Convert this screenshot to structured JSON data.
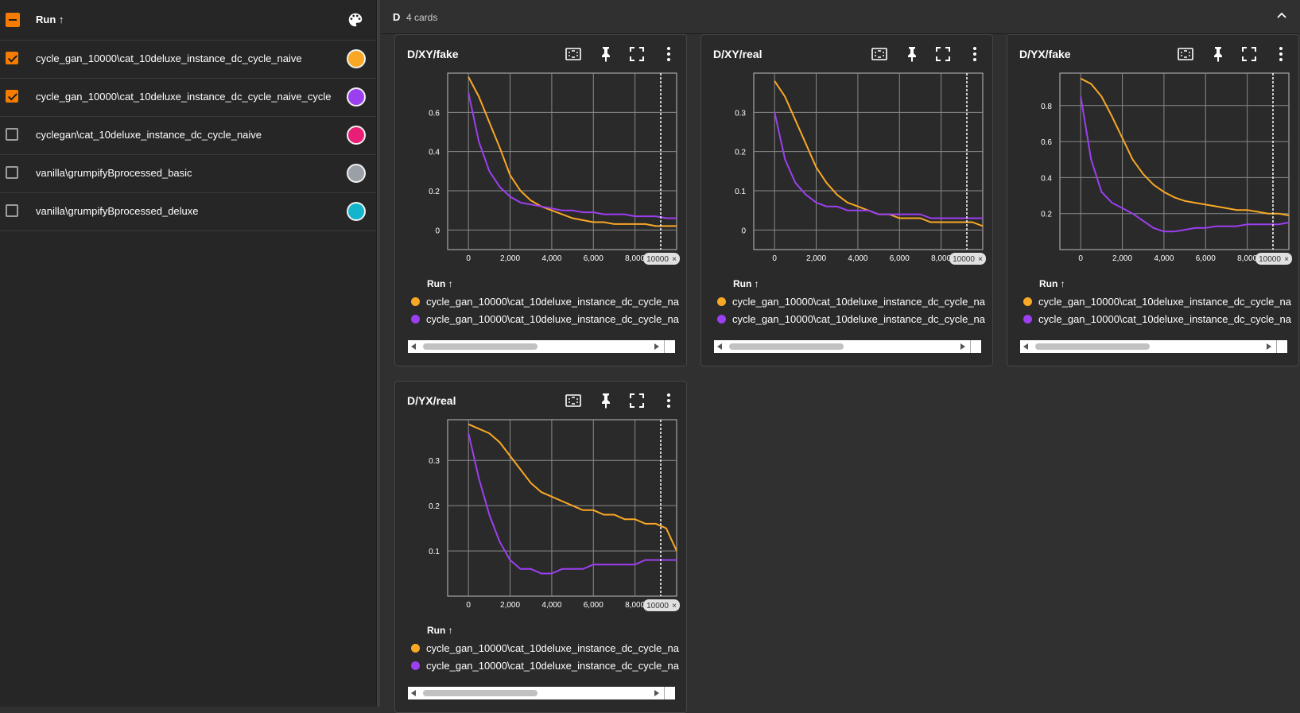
{
  "runs_panel": {
    "header_label": "Run ↑",
    "runs": [
      {
        "name": "cycle_gan_10000\\cat_10deluxe_instance_dc_cycle_naive",
        "checked": true,
        "color": "#f9a825"
      },
      {
        "name": "cycle_gan_10000\\cat_10deluxe_instance_dc_cycle_naive_cycle",
        "checked": true,
        "color": "#9c3ff0"
      },
      {
        "name": "cyclegan\\cat_10deluxe_instance_dc_cycle_naive",
        "checked": false,
        "color": "#e91e77"
      },
      {
        "name": "vanilla\\grumpifyBprocessed_basic",
        "checked": false,
        "color": "#9aa0a6"
      },
      {
        "name": "vanilla\\grumpifyBprocessed_deluxe",
        "checked": false,
        "color": "#12b5cb"
      }
    ]
  },
  "group": {
    "name": "D",
    "count": "4 cards"
  },
  "icons": [
    "palette-icon",
    "fit-domain-icon",
    "pin-icon",
    "fullscreen-icon",
    "more-vert-icon",
    "chevron-up-icon"
  ],
  "colors": {
    "series_1": "#f9a825",
    "series_2": "#9c3ff0",
    "accent": "#f57c00"
  },
  "legend_head": "Run ↑",
  "legend_items": [
    {
      "name": "cycle_gan_10000\\cat_10deluxe_instance_dc_cycle_na",
      "color": "#f9a825"
    },
    {
      "name": "cycle_gan_10000\\cat_10deluxe_instance_dc_cycle_na",
      "color": "#9c3ff0"
    }
  ],
  "step_marker": "10000",
  "cards": [
    {
      "title": "D/XY/fake"
    },
    {
      "title": "D/XY/real"
    },
    {
      "title": "D/YX/fake"
    },
    {
      "title": "D/YX/real"
    }
  ],
  "chart_data": [
    {
      "type": "line",
      "title": "D/XY/fake",
      "x_ticks": [
        "0",
        "2,000",
        "4,000",
        "6,000",
        "8,000"
      ],
      "y_ticks": [
        "0",
        "0.2",
        "0.4",
        "0.6"
      ],
      "xlim": [
        -1000,
        10000
      ],
      "ylim": [
        -0.1,
        0.8
      ],
      "grid": true,
      "series": [
        {
          "color": "#f9a825",
          "x": [
            0,
            500,
            1000,
            1500,
            2000,
            2500,
            3000,
            3500,
            4000,
            4500,
            5000,
            5500,
            6000,
            6500,
            7000,
            7500,
            8000,
            8500,
            9000,
            9500,
            10000
          ],
          "y": [
            0.78,
            0.68,
            0.55,
            0.42,
            0.28,
            0.2,
            0.15,
            0.12,
            0.1,
            0.08,
            0.06,
            0.05,
            0.04,
            0.04,
            0.03,
            0.03,
            0.03,
            0.03,
            0.02,
            0.02,
            0.02
          ]
        },
        {
          "color": "#9c3ff0",
          "x": [
            0,
            500,
            1000,
            1500,
            2000,
            2500,
            3000,
            3500,
            4000,
            4500,
            5000,
            5500,
            6000,
            6500,
            7000,
            7500,
            8000,
            8500,
            9000,
            9500,
            10000
          ],
          "y": [
            0.7,
            0.45,
            0.3,
            0.22,
            0.17,
            0.14,
            0.13,
            0.12,
            0.11,
            0.1,
            0.1,
            0.09,
            0.09,
            0.08,
            0.08,
            0.08,
            0.07,
            0.07,
            0.07,
            0.06,
            0.06
          ]
        }
      ]
    },
    {
      "type": "line",
      "title": "D/XY/real",
      "x_ticks": [
        "0",
        "2,000",
        "4,000",
        "6,000",
        "8,000"
      ],
      "y_ticks": [
        "0",
        "0.1",
        "0.2",
        "0.3"
      ],
      "xlim": [
        -1000,
        10000
      ],
      "ylim": [
        -0.05,
        0.4
      ],
      "grid": true,
      "series": [
        {
          "color": "#f9a825",
          "x": [
            0,
            500,
            1000,
            1500,
            2000,
            2500,
            3000,
            3500,
            4000,
            4500,
            5000,
            5500,
            6000,
            6500,
            7000,
            7500,
            8000,
            8500,
            9000,
            9500,
            10000
          ],
          "y": [
            0.38,
            0.34,
            0.28,
            0.22,
            0.16,
            0.12,
            0.09,
            0.07,
            0.06,
            0.05,
            0.04,
            0.04,
            0.03,
            0.03,
            0.03,
            0.02,
            0.02,
            0.02,
            0.02,
            0.02,
            0.01
          ]
        },
        {
          "color": "#9c3ff0",
          "x": [
            0,
            500,
            1000,
            1500,
            2000,
            2500,
            3000,
            3500,
            4000,
            4500,
            5000,
            5500,
            6000,
            6500,
            7000,
            7500,
            8000,
            8500,
            9000,
            9500,
            10000
          ],
          "y": [
            0.3,
            0.18,
            0.12,
            0.09,
            0.07,
            0.06,
            0.06,
            0.05,
            0.05,
            0.05,
            0.04,
            0.04,
            0.04,
            0.04,
            0.04,
            0.03,
            0.03,
            0.03,
            0.03,
            0.03,
            0.03
          ]
        }
      ]
    },
    {
      "type": "line",
      "title": "D/YX/fake",
      "x_ticks": [
        "0",
        "2,000",
        "4,000",
        "6,000",
        "8,000"
      ],
      "y_ticks": [
        "0.2",
        "0.4",
        "0.6",
        "0.8"
      ],
      "xlim": [
        -1000,
        10000
      ],
      "ylim": [
        0,
        0.98
      ],
      "grid": true,
      "series": [
        {
          "color": "#f9a825",
          "x": [
            0,
            500,
            1000,
            1500,
            2000,
            2500,
            3000,
            3500,
            4000,
            4500,
            5000,
            5500,
            6000,
            6500,
            7000,
            7500,
            8000,
            8500,
            9000,
            9500,
            10000
          ],
          "y": [
            0.95,
            0.92,
            0.85,
            0.74,
            0.62,
            0.5,
            0.42,
            0.36,
            0.32,
            0.29,
            0.27,
            0.26,
            0.25,
            0.24,
            0.23,
            0.22,
            0.22,
            0.21,
            0.2,
            0.2,
            0.19
          ]
        },
        {
          "color": "#9c3ff0",
          "x": [
            0,
            500,
            1000,
            1500,
            2000,
            2500,
            3000,
            3500,
            4000,
            4500,
            5000,
            5500,
            6000,
            6500,
            7000,
            7500,
            8000,
            8500,
            9000,
            9500,
            10000
          ],
          "y": [
            0.85,
            0.5,
            0.32,
            0.26,
            0.23,
            0.2,
            0.16,
            0.12,
            0.1,
            0.1,
            0.11,
            0.12,
            0.12,
            0.13,
            0.13,
            0.13,
            0.14,
            0.14,
            0.14,
            0.14,
            0.15
          ]
        }
      ]
    },
    {
      "type": "line",
      "title": "D/YX/real",
      "x_ticks": [
        "0",
        "2,000",
        "4,000",
        "6,000",
        "8,000"
      ],
      "y_ticks": [
        "0.1",
        "0.2",
        "0.3"
      ],
      "xlim": [
        -1000,
        10000
      ],
      "ylim": [
        0,
        0.39
      ],
      "grid": true,
      "series": [
        {
          "color": "#f9a825",
          "x": [
            0,
            500,
            1000,
            1500,
            2000,
            2500,
            3000,
            3500,
            4000,
            4500,
            5000,
            5500,
            6000,
            6500,
            7000,
            7500,
            8000,
            8500,
            9000,
            9500,
            10000
          ],
          "y": [
            0.38,
            0.37,
            0.36,
            0.34,
            0.31,
            0.28,
            0.25,
            0.23,
            0.22,
            0.21,
            0.2,
            0.19,
            0.19,
            0.18,
            0.18,
            0.17,
            0.17,
            0.16,
            0.16,
            0.15,
            0.1
          ]
        },
        {
          "color": "#9c3ff0",
          "x": [
            0,
            500,
            1000,
            1500,
            2000,
            2500,
            3000,
            3500,
            4000,
            4500,
            5000,
            5500,
            6000,
            6500,
            7000,
            7500,
            8000,
            8500,
            9000,
            9500,
            10000
          ],
          "y": [
            0.36,
            0.26,
            0.18,
            0.12,
            0.08,
            0.06,
            0.06,
            0.05,
            0.05,
            0.06,
            0.06,
            0.06,
            0.07,
            0.07,
            0.07,
            0.07,
            0.07,
            0.08,
            0.08,
            0.08,
            0.08
          ]
        }
      ]
    }
  ]
}
